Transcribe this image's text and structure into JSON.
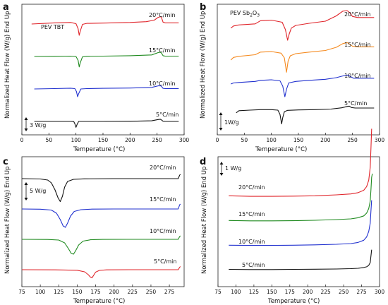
{
  "figure": {
    "panels": [
      {
        "id": "a",
        "letter": "a"
      },
      {
        "id": "b",
        "letter": "b"
      },
      {
        "id": "c",
        "letter": "c"
      },
      {
        "id": "d",
        "letter": "d"
      }
    ]
  },
  "chart_data": [
    {
      "panel": "a",
      "type": "line",
      "title": "",
      "sample_label": "PEV TBT",
      "xlabel": "Temperature (°C)",
      "ylabel": "Normalized Heat Flow (W/g) End Up",
      "xlim": [
        0,
        300
      ],
      "xticks": [
        0,
        50,
        100,
        150,
        200,
        250,
        300
      ],
      "yticks_shown": false,
      "scale_bar_label": "3 W/g",
      "series": [
        {
          "name": "20°C/min",
          "color": "#e0242a",
          "offset": 3,
          "x": [
            18,
            60,
            90,
            100,
            104,
            106,
            108,
            112,
            120,
            150,
            200,
            230,
            245,
            252,
            256,
            258,
            261,
            265,
            280,
            290
          ],
          "y": [
            0.0,
            0.15,
            0.2,
            0.05,
            -0.6,
            -1.45,
            -0.9,
            -0.05,
            0.08,
            0.12,
            0.2,
            0.3,
            0.5,
            0.85,
            0.95,
            0.85,
            0.25,
            0.15,
            0.15,
            0.15
          ]
        },
        {
          "name": "15°C/min",
          "color": "#1f8a1f",
          "offset": 2,
          "x": [
            23,
            60,
            90,
            100,
            104,
            106,
            108,
            112,
            120,
            150,
            200,
            240,
            252,
            256,
            258,
            261,
            265,
            280,
            290
          ],
          "y": [
            0.0,
            0.02,
            0.05,
            0.0,
            -0.5,
            -1.35,
            -0.8,
            -0.05,
            0.02,
            0.05,
            0.1,
            0.2,
            0.5,
            0.55,
            0.45,
            0.1,
            0.05,
            0.05,
            0.05
          ]
        },
        {
          "name": "10°C/min",
          "color": "#2131cf",
          "offset": 1,
          "x": [
            23,
            60,
            90,
            98,
            101,
            103,
            105,
            109,
            120,
            150,
            200,
            240,
            252,
            256,
            258,
            261,
            265,
            280,
            290
          ],
          "y": [
            0.0,
            0.05,
            0.1,
            0.05,
            -0.35,
            -1.0,
            -0.6,
            0.0,
            0.05,
            0.08,
            0.12,
            0.2,
            0.4,
            0.42,
            0.35,
            0.08,
            0.05,
            0.05,
            0.05
          ]
        },
        {
          "name": "5°C/min",
          "color": "#111111",
          "offset": 0,
          "x": [
            23,
            60,
            90,
            96,
            98,
            100,
            102,
            105,
            120,
            150,
            200,
            240,
            252,
            256,
            258,
            261,
            265,
            280,
            290
          ],
          "y": [
            0.0,
            0.0,
            0.0,
            -0.02,
            -0.3,
            -0.75,
            -0.4,
            0.0,
            0.0,
            0.0,
            0.02,
            0.08,
            0.25,
            0.28,
            0.2,
            0.03,
            0.0,
            0.0,
            0.0
          ]
        }
      ]
    },
    {
      "panel": "b",
      "type": "line",
      "title": "",
      "sample_label_main": "PEV Sb",
      "sample_label_sub": "2",
      "sample_label_mid": "O",
      "sample_label_sub2": "3",
      "xlabel": "Temperature (°C)",
      "ylabel": "Normalized Heat Flow (W/g) End Up",
      "xlim": [
        0,
        300
      ],
      "xticks": [
        0,
        50,
        100,
        150,
        200,
        250,
        300
      ],
      "yticks_shown": false,
      "scale_bar_label": "1W/g",
      "series": [
        {
          "name": "20°C/min",
          "color": "#e0242a",
          "offset": 3,
          "x": [
            25,
            30,
            40,
            70,
            80,
            100,
            120,
            126,
            130,
            133,
            137,
            145,
            170,
            200,
            220,
            232,
            240,
            245,
            250,
            260,
            290
          ],
          "y": [
            0.15,
            0.35,
            0.45,
            0.55,
            0.85,
            0.9,
            0.7,
            0.0,
            -1.0,
            -0.4,
            0.15,
            0.4,
            0.6,
            0.8,
            1.3,
            1.75,
            1.8,
            1.6,
            1.25,
            1.15,
            1.15
          ]
        },
        {
          "name": "15°C/min",
          "color": "#f58a1f",
          "offset": 2,
          "x": [
            25,
            30,
            40,
            70,
            80,
            100,
            118,
            124,
            128,
            131,
            135,
            145,
            170,
            200,
            220,
            232,
            240,
            245,
            250,
            260,
            290
          ],
          "y": [
            -0.2,
            0.05,
            0.15,
            0.3,
            0.55,
            0.6,
            0.45,
            0.0,
            -1.35,
            -0.3,
            0.2,
            0.4,
            0.55,
            0.7,
            1.0,
            1.35,
            1.45,
            1.3,
            1.1,
            1.05,
            1.05
          ]
        },
        {
          "name": "10°C/min",
          "color": "#2131cf",
          "offset": 1,
          "x": [
            25,
            30,
            40,
            70,
            80,
            100,
            116,
            121,
            125,
            128,
            132,
            145,
            170,
            200,
            220,
            235,
            242,
            246,
            252,
            260,
            290
          ],
          "y": [
            0.2,
            0.3,
            0.35,
            0.45,
            0.55,
            0.6,
            0.5,
            0.0,
            -1.0,
            -0.3,
            0.3,
            0.45,
            0.55,
            0.65,
            0.8,
            1.0,
            1.05,
            0.9,
            0.75,
            0.75,
            0.75
          ]
        },
        {
          "name": "5°C/min",
          "color": "#111111",
          "offset": 0,
          "x": [
            35,
            40,
            60,
            80,
            100,
            112,
            116,
            119,
            121,
            124,
            130,
            150,
            180,
            210,
            230,
            240,
            244,
            248,
            255,
            270,
            290
          ],
          "y": [
            0.15,
            0.35,
            0.4,
            0.45,
            0.45,
            0.4,
            0.0,
            -0.9,
            -0.3,
            0.25,
            0.38,
            0.42,
            0.45,
            0.5,
            0.62,
            0.75,
            0.78,
            0.65,
            0.6,
            0.6,
            0.6
          ]
        }
      ]
    },
    {
      "panel": "c",
      "type": "line",
      "title": "",
      "xlabel": "Temperature (°C)",
      "ylabel": "Normalized Heat Flow (W/g) End Up",
      "xlim": [
        75,
        295
      ],
      "xticks": [
        75,
        100,
        125,
        150,
        175,
        200,
        225,
        250,
        275
      ],
      "yticks_shown": false,
      "scale_bar_label": "5 W/g",
      "series": [
        {
          "name": "20°C/min",
          "color": "#111111",
          "offset": 3,
          "x": [
            75,
            100,
            110,
            115,
            120,
            124,
            127,
            130,
            133,
            137,
            145,
            160,
            200,
            250,
            287,
            289,
            290
          ],
          "y": [
            0.0,
            -0.05,
            -0.2,
            -0.6,
            -1.6,
            -2.7,
            -3.25,
            -2.5,
            -1.2,
            -0.4,
            -0.1,
            -0.03,
            0.0,
            0.0,
            0.0,
            0.5,
            0.6
          ]
        },
        {
          "name": "15°C/min",
          "color": "#2131cf",
          "offset": 2,
          "x": [
            75,
            100,
            115,
            122,
            127,
            131,
            134,
            137,
            141,
            146,
            155,
            170,
            200,
            250,
            287,
            289,
            290
          ],
          "y": [
            0.0,
            -0.03,
            -0.15,
            -0.6,
            -1.5,
            -2.4,
            -2.6,
            -2.0,
            -1.0,
            -0.35,
            -0.1,
            -0.02,
            0.0,
            0.0,
            0.0,
            0.6,
            0.7
          ]
        },
        {
          "name": "10°C/min",
          "color": "#1f8a1f",
          "offset": 1,
          "x": [
            75,
            110,
            125,
            133,
            138,
            142,
            145,
            148,
            152,
            158,
            168,
            185,
            220,
            260,
            287,
            289,
            290
          ],
          "y": [
            0.0,
            -0.02,
            -0.1,
            -0.5,
            -1.3,
            -2.0,
            -2.1,
            -1.6,
            -0.8,
            -0.25,
            -0.06,
            -0.01,
            0.0,
            0.0,
            0.0,
            0.4,
            0.5
          ]
        },
        {
          "name": "5°C/min",
          "color": "#e0242a",
          "offset": 0,
          "x": [
            75,
            120,
            150,
            160,
            165,
            168,
            170,
            172,
            175,
            180,
            190,
            220,
            260,
            287,
            289,
            290
          ],
          "y": [
            0.0,
            -0.02,
            -0.08,
            -0.3,
            -0.7,
            -1.05,
            -1.15,
            -0.85,
            -0.35,
            -0.1,
            -0.02,
            0.0,
            0.0,
            0.0,
            0.35,
            0.45
          ]
        }
      ]
    },
    {
      "panel": "d",
      "type": "line",
      "title": "",
      "xlabel": "Temperature (°C)",
      "ylabel": "Normalized Heat Flow (W/g) End Up",
      "xlim": [
        75,
        300
      ],
      "xticks": [
        75,
        100,
        125,
        150,
        175,
        200,
        225,
        250,
        275,
        300
      ],
      "yticks_shown": false,
      "scale_bar_label": "1 W/g",
      "series": [
        {
          "name": "20°C/min",
          "color": "#e0242a",
          "offset": 3,
          "x": [
            90,
            120,
            150,
            180,
            210,
            240,
            260,
            270,
            278,
            282,
            285,
            287,
            288,
            289
          ],
          "y": [
            -0.05,
            -0.08,
            -0.08,
            -0.07,
            -0.05,
            0.0,
            0.05,
            0.12,
            0.25,
            0.45,
            0.8,
            1.5,
            2.5,
            3.6
          ]
        },
        {
          "name": "15°C/min",
          "color": "#1f8a1f",
          "offset": 2,
          "x": [
            90,
            120,
            150,
            180,
            210,
            240,
            260,
            270,
            278,
            282,
            285,
            287,
            288,
            289,
            290
          ],
          "y": [
            -0.05,
            -0.07,
            -0.07,
            -0.06,
            -0.04,
            0.0,
            0.04,
            0.1,
            0.2,
            0.35,
            0.6,
            1.0,
            1.6,
            2.3,
            2.5
          ]
        },
        {
          "name": "10°C/min",
          "color": "#2131cf",
          "offset": 1,
          "x": [
            90,
            120,
            150,
            180,
            210,
            240,
            260,
            270,
            278,
            282,
            285,
            287,
            288,
            289
          ],
          "y": [
            -0.05,
            -0.06,
            -0.06,
            -0.05,
            -0.03,
            0.0,
            0.04,
            0.1,
            0.22,
            0.4,
            0.7,
            1.15,
            1.8,
            2.4
          ]
        },
        {
          "name": "5°C/min",
          "color": "#111111",
          "offset": 0,
          "x": [
            90,
            120,
            150,
            180,
            210,
            240,
            260,
            270,
            278,
            282,
            285,
            287,
            288,
            289
          ],
          "y": [
            -0.02,
            -0.03,
            -0.03,
            -0.02,
            -0.01,
            0.0,
            0.02,
            0.04,
            0.08,
            0.12,
            0.2,
            0.35,
            0.7,
            1.05
          ]
        }
      ]
    }
  ]
}
